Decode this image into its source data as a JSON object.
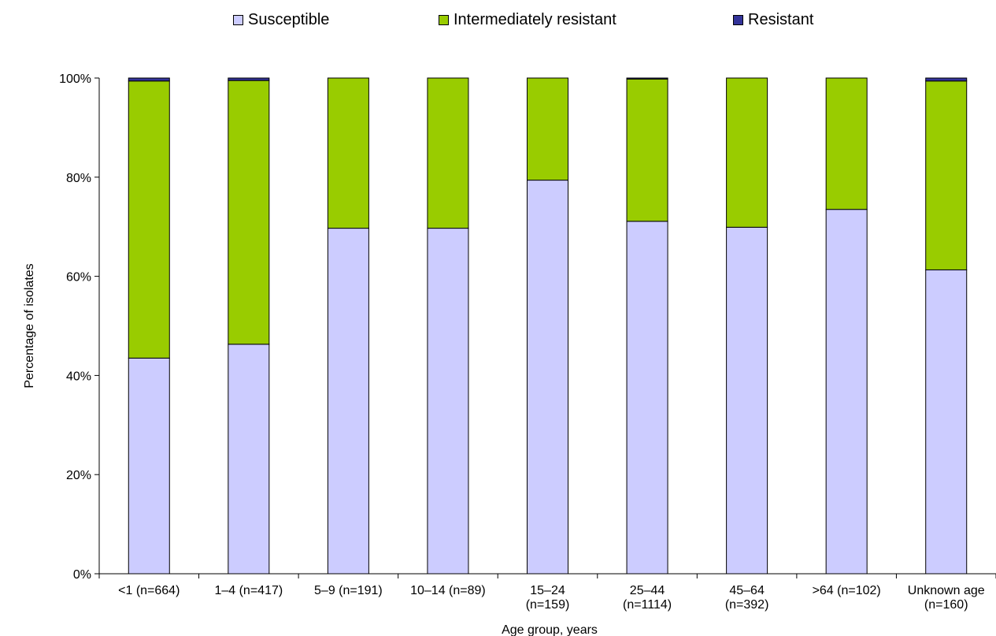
{
  "chart_data": {
    "type": "bar",
    "stacked": true,
    "categories": [
      [
        "<1 (n=664)"
      ],
      [
        "1–4 (n=417)"
      ],
      [
        "5–9 (n=191)"
      ],
      [
        "10–14 (n=89)"
      ],
      [
        "15–24",
        "(n=159)"
      ],
      [
        "25–44",
        "(n=1114)"
      ],
      [
        "45–64",
        "(n=392)"
      ],
      [
        ">64 (n=102)"
      ],
      [
        "Unknown age",
        "(n=160)"
      ]
    ],
    "series": [
      {
        "name": "Susceptible",
        "color": "#ccccff",
        "values": [
          43.5,
          46.3,
          69.7,
          69.7,
          79.4,
          71.1,
          69.9,
          73.5,
          61.3
        ]
      },
      {
        "name": "Intermediately resistant",
        "color": "#99cc00",
        "values": [
          55.9,
          53.2,
          30.3,
          30.3,
          20.6,
          28.7,
          30.1,
          26.5,
          38.1
        ]
      },
      {
        "name": "Resistant",
        "color": "#333399",
        "values": [
          0.6,
          0.5,
          0.0,
          0.0,
          0.0,
          0.2,
          0.0,
          0.0,
          0.6
        ]
      }
    ],
    "xlabel": "Age group, years",
    "ylabel": "Percentage of isolates",
    "ylim": [
      0,
      100
    ],
    "yticks": [
      "0%",
      "20%",
      "40%",
      "60%",
      "80%",
      "100%"
    ],
    "legend_position": "top",
    "grid": false
  }
}
